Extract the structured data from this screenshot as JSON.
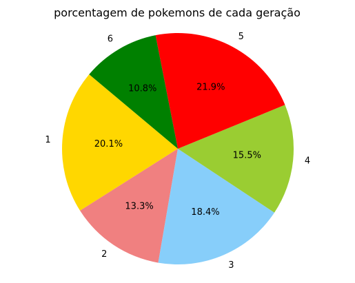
{
  "chart_data": {
    "type": "pie",
    "title": "porcentagem de pokemons de cada geração",
    "start_angle_deg": 140,
    "counterclockwise": true,
    "slices": [
      {
        "label": "1",
        "value": 20.1,
        "pct_label": "20.1%",
        "color": "#FFD700"
      },
      {
        "label": "2",
        "value": 13.3,
        "pct_label": "13.3%",
        "color": "#F08080"
      },
      {
        "label": "3",
        "value": 18.4,
        "pct_label": "18.4%",
        "color": "#87CEFA"
      },
      {
        "label": "4",
        "value": 15.5,
        "pct_label": "15.5%",
        "color": "#9ACD32"
      },
      {
        "label": "5",
        "value": 21.9,
        "pct_label": "21.9%",
        "color": "#FF0000"
      },
      {
        "label": "6",
        "value": 10.8,
        "pct_label": "10.8%",
        "color": "#008000"
      }
    ]
  }
}
